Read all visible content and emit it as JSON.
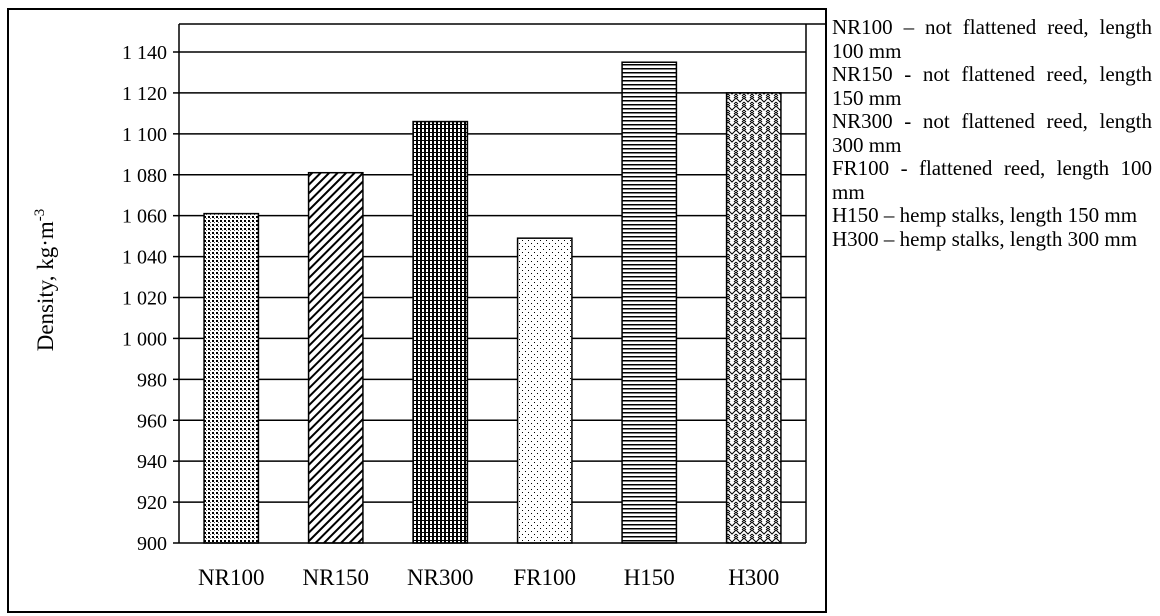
{
  "chart_data": {
    "type": "bar",
    "categories": [
      "NR100",
      "NR150",
      "NR300",
      "FR100",
      "H150",
      "H300"
    ],
    "values": [
      1061,
      1081,
      1106,
      1049,
      1135,
      1120
    ],
    "ylabel_main": "Density, kg·m",
    "ylabel_exponent": "-3",
    "ylim": [
      900,
      1140
    ],
    "y_ticks": [
      900,
      920,
      940,
      960,
      980,
      1000,
      1020,
      1040,
      1060,
      1080,
      1100,
      1120,
      1140
    ],
    "y_tick_labels": [
      "900",
      "920",
      "940",
      "960",
      "980",
      "1 000",
      "1 020",
      "1 040",
      "1 060",
      "1 080",
      "1 100",
      "1 120",
      "1 140"
    ],
    "grid": true,
    "legend_position": "right",
    "bar_fill_patterns": [
      "dots-dense",
      "diagonal-lines",
      "checker-grid",
      "dots-sparse",
      "horizontal-lines",
      "weave"
    ]
  },
  "legend": {
    "entries": [
      "NR100 – not flattened reed, length 100 mm",
      "NR150 - not flattened reed, length 150 mm",
      "NR300 - not flattened reed, length 300 mm",
      "FR100 - flattened reed, length 100 mm",
      "H150 – hemp stalks, length 150 mm",
      "H300 – hemp stalks, length 300 mm"
    ]
  }
}
